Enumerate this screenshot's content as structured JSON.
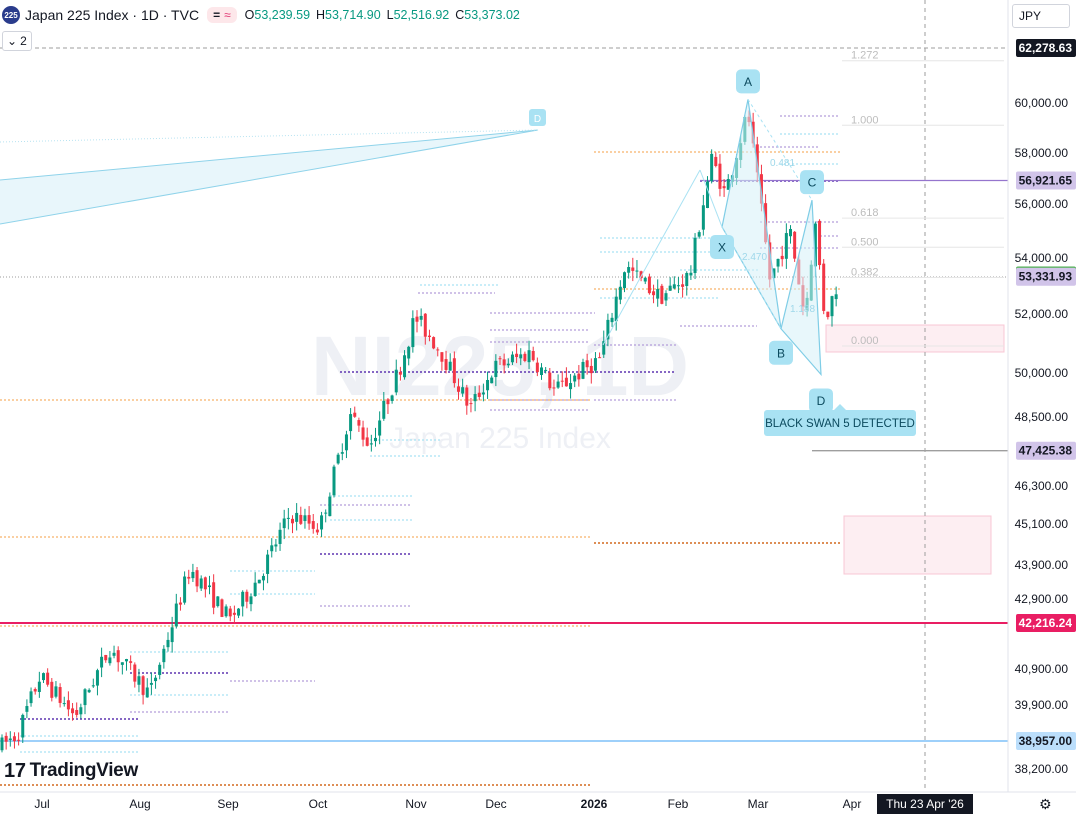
{
  "header": {
    "symbol_badge": "225",
    "title": "Japan 225 Index · 1D · TVC",
    "ohlc": [
      {
        "k": "O",
        "v": "53,239.59"
      },
      {
        "k": "H",
        "v": "53,714.90"
      },
      {
        "k": "L",
        "v": "52,516.92"
      },
      {
        "k": "C",
        "v": "53,373.02"
      }
    ],
    "pill_left": "=",
    "pill_right": "≈",
    "indicators_count": "2",
    "currency": "JPY"
  },
  "watermark": {
    "ticker": "NI225, 1D",
    "name": "Japan 225 Index"
  },
  "logo": "TradingView",
  "chart_data": {
    "type": "candlestick",
    "price_axis_ticks": [
      60000,
      58000,
      56000,
      54000,
      52000,
      50000,
      48500,
      46300,
      45100,
      43900,
      42900,
      40900,
      39900,
      38200
    ],
    "price_axis_tick_labels": [
      "60,000.00",
      "58,000.00",
      "56,000.00",
      "54,000.00",
      "52,000.00",
      "50,000.00",
      "48,500.00",
      "46,300.00",
      "45,100.00",
      "43,900.00",
      "42,900.00",
      "40,900.00",
      "39,900.00",
      "38,200.00"
    ],
    "time_labels": [
      "Jul",
      "Aug",
      "Sep",
      "Oct",
      "Nov",
      "Dec",
      "2026",
      "Feb",
      "Mar",
      "Apr"
    ],
    "time_bold": "2026",
    "crosshair_date": "Thu 23 Apr '26",
    "price_badges": [
      {
        "label": "62,278.63",
        "price": 62278.63,
        "bg": "#131722",
        "fg": "#ffffff"
      },
      {
        "label": "56,921.65",
        "price": 56921.65,
        "bg": "#d1c4e9",
        "fg": "#131722"
      },
      {
        "label": "53,373.02",
        "price": 53373.02,
        "bg": "#4caf50",
        "fg": "#ffffff"
      },
      {
        "label": "53,331.93",
        "price": 53331.93,
        "bg": "#d1c4e9",
        "fg": "#131722"
      },
      {
        "label": "47,425.38",
        "price": 47425.38,
        "bg": "#d1c4e9",
        "fg": "#131722"
      },
      {
        "label": "42,216.24",
        "price": 42216.24,
        "bg": "#e91e63",
        "fg": "#ffffff"
      },
      {
        "label": "38,957.00",
        "price": 38957.0,
        "bg": "#bbdefb",
        "fg": "#131722"
      }
    ],
    "fib_levels": [
      {
        "label": "1.272",
        "price": 62000
      },
      {
        "label": "1.000",
        "price": 59350
      },
      {
        "label": "0.618",
        "price": 55700
      },
      {
        "label": "0.500",
        "price": 54620
      },
      {
        "label": "0.382",
        "price": 53520
      },
      {
        "label": "0.000",
        "price": 51120
      }
    ],
    "pattern_points": [
      {
        "label": "X",
        "price": 55150
      },
      {
        "label": "A",
        "price": 60150
      },
      {
        "label": "B",
        "price": 51500
      },
      {
        "label": "C",
        "price": 56150
      },
      {
        "label": "D",
        "price": 49950
      }
    ],
    "pattern_ratios": [
      "0.481",
      "2.470",
      "1.188"
    ],
    "history_d_label": "D",
    "alert_text": "BLACK SWAN 5 DETECTED",
    "horizontal_lines": [
      {
        "price": 42216.24,
        "color": "#e91e63"
      },
      {
        "price": 38957.0,
        "color": "#64b5f6"
      },
      {
        "price": 56921.65,
        "color": "#9575cd"
      },
      {
        "price": 47425.38,
        "color": "#9e9e9e"
      }
    ],
    "colors": {
      "up": "#089981",
      "down": "#f23645"
    },
    "ohlc_last": {
      "open": 53239.59,
      "high": 53714.9,
      "low": 52516.92,
      "close": 53373.02
    }
  }
}
